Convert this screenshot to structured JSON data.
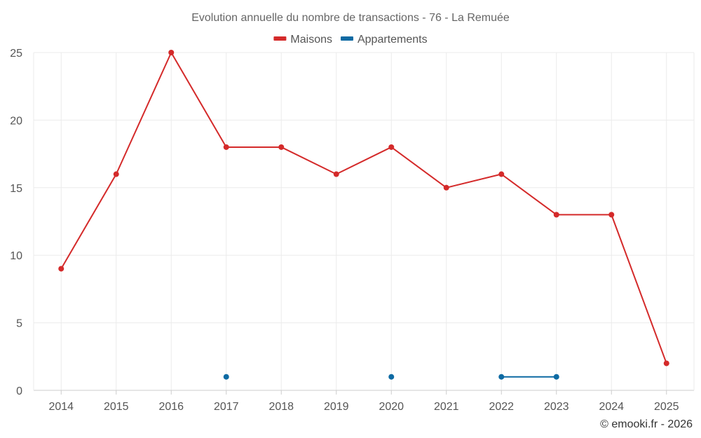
{
  "chart_data": {
    "type": "line",
    "title": "Evolution annuelle du nombre de transactions - 76 - La Remuée",
    "categories": [
      "2014",
      "2015",
      "2016",
      "2017",
      "2018",
      "2019",
      "2020",
      "2021",
      "2022",
      "2023",
      "2024",
      "2025"
    ],
    "series": [
      {
        "name": "Maisons",
        "color": "#d42a2a",
        "values": [
          9,
          16,
          25,
          18,
          18,
          16,
          18,
          15,
          16,
          13,
          13,
          2
        ]
      },
      {
        "name": "Appartements",
        "color": "#0d6aa3",
        "values": [
          null,
          null,
          null,
          1,
          null,
          null,
          1,
          null,
          1,
          1,
          null,
          null
        ]
      }
    ],
    "ylim": [
      0,
      25
    ],
    "yticks": [
      0,
      5,
      10,
      15,
      20,
      25
    ],
    "xlabel": "",
    "ylabel": "",
    "grid": true,
    "legend": "top-center"
  },
  "credit": "© emooki.fr - 2026"
}
